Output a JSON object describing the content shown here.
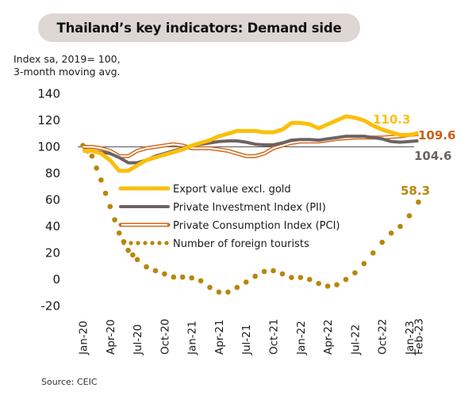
{
  "title": "Thailand’s key indicators: Demand side",
  "units_line1": "Index sa, 2019= 100,",
  "units_line2": "3-month moving avg.",
  "source": "Source: CEIC",
  "chart_data": {
    "type": "line",
    "title": "Thailand’s key indicators: Demand side",
    "ylabel": "Index sa, 2019= 100, 3-month moving avg.",
    "xlabel": "",
    "ylim": [
      -20,
      140
    ],
    "yticks": [
      140,
      120,
      100,
      80,
      60,
      40,
      20,
      0,
      -20
    ],
    "reference_line": 100,
    "grid": false,
    "legend_position": "center",
    "xtick_labels": [
      "Jan-20",
      "Apr-20",
      "Jul-20",
      "Oct-20",
      "Jan-21",
      "Apr-21",
      "Jul-21",
      "Oct-21",
      "Jan-22",
      "Apr-22",
      "Jul-22",
      "Oct-22",
      "Jan-23",
      "Feb-23"
    ],
    "xtick_index": [
      0,
      3,
      6,
      9,
      12,
      15,
      18,
      21,
      24,
      27,
      30,
      33,
      36,
      37
    ],
    "x": [
      "Jan-20",
      "Feb-20",
      "Mar-20",
      "Apr-20",
      "May-20",
      "Jun-20",
      "Jul-20",
      "Aug-20",
      "Sep-20",
      "Oct-20",
      "Nov-20",
      "Dec-20",
      "Jan-21",
      "Feb-21",
      "Mar-21",
      "Apr-21",
      "May-21",
      "Jun-21",
      "Jul-21",
      "Aug-21",
      "Sep-21",
      "Oct-21",
      "Nov-21",
      "Dec-21",
      "Jan-22",
      "Feb-22",
      "Mar-22",
      "Apr-22",
      "May-22",
      "Jun-22",
      "Jul-22",
      "Aug-22",
      "Sep-22",
      "Oct-22",
      "Nov-22",
      "Dec-22",
      "Jan-23",
      "Feb-23"
    ],
    "series": [
      {
        "name": "Export value excl. gold",
        "color": "#fbbf0a",
        "style": "thick",
        "values": [
          97,
          97,
          95,
          90,
          82,
          82,
          86,
          90,
          92,
          94,
          96,
          98,
          101,
          103,
          105,
          108,
          110,
          112,
          112,
          112,
          111,
          111,
          113,
          118,
          118,
          117,
          114,
          117,
          120,
          123,
          122,
          120,
          116,
          113,
          111,
          109,
          109,
          110.3
        ],
        "end_label": "110.3",
        "label_color": "#fbbf0a"
      },
      {
        "name": "Private Investment Index (PII)",
        "color": "#6e6262",
        "style": "solid",
        "values": [
          98,
          97,
          96,
          95,
          92,
          88,
          88,
          90,
          93,
          95,
          97,
          99,
          101,
          102,
          103,
          104,
          104.5,
          104.5,
          103.5,
          102,
          101.5,
          101.5,
          103,
          105,
          105.5,
          105.5,
          105,
          106,
          107,
          108,
          108,
          108,
          107,
          106,
          104,
          103.5,
          104,
          104.6
        ],
        "end_label": "104.6",
        "label_color": "#6e6262"
      },
      {
        "name": "Private Consumption Index (PCI)",
        "color": "#d2691e",
        "style": "double",
        "values": [
          100,
          100,
          99,
          97,
          93,
          93,
          97,
          99,
          100,
          101,
          102,
          101,
          99,
          99,
          99,
          98,
          97,
          95,
          93,
          93,
          95,
          99,
          101,
          103,
          104,
          104,
          104,
          105,
          106,
          106.5,
          107,
          107,
          107,
          107,
          107.5,
          108,
          109,
          109.6
        ],
        "end_label": "109.6",
        "label_color": "#c8601a"
      },
      {
        "name": "Number of foreign tourists",
        "color": "#b8860b",
        "style": "dotted",
        "values": [
          101,
          93,
          75,
          55,
          35,
          22,
          15,
          9.5,
          6.6,
          4.2,
          1.8,
          1.8,
          1.2,
          -1,
          -6,
          -9.5,
          -9.5,
          -6,
          -2,
          2.4,
          6,
          6.6,
          4.2,
          1.5,
          1.5,
          0,
          -3,
          -5,
          -4,
          0,
          5,
          12,
          20,
          28,
          35,
          40,
          48,
          58.3
        ],
        "end_label": "58.3",
        "label_color": "#b8860b"
      }
    ]
  }
}
